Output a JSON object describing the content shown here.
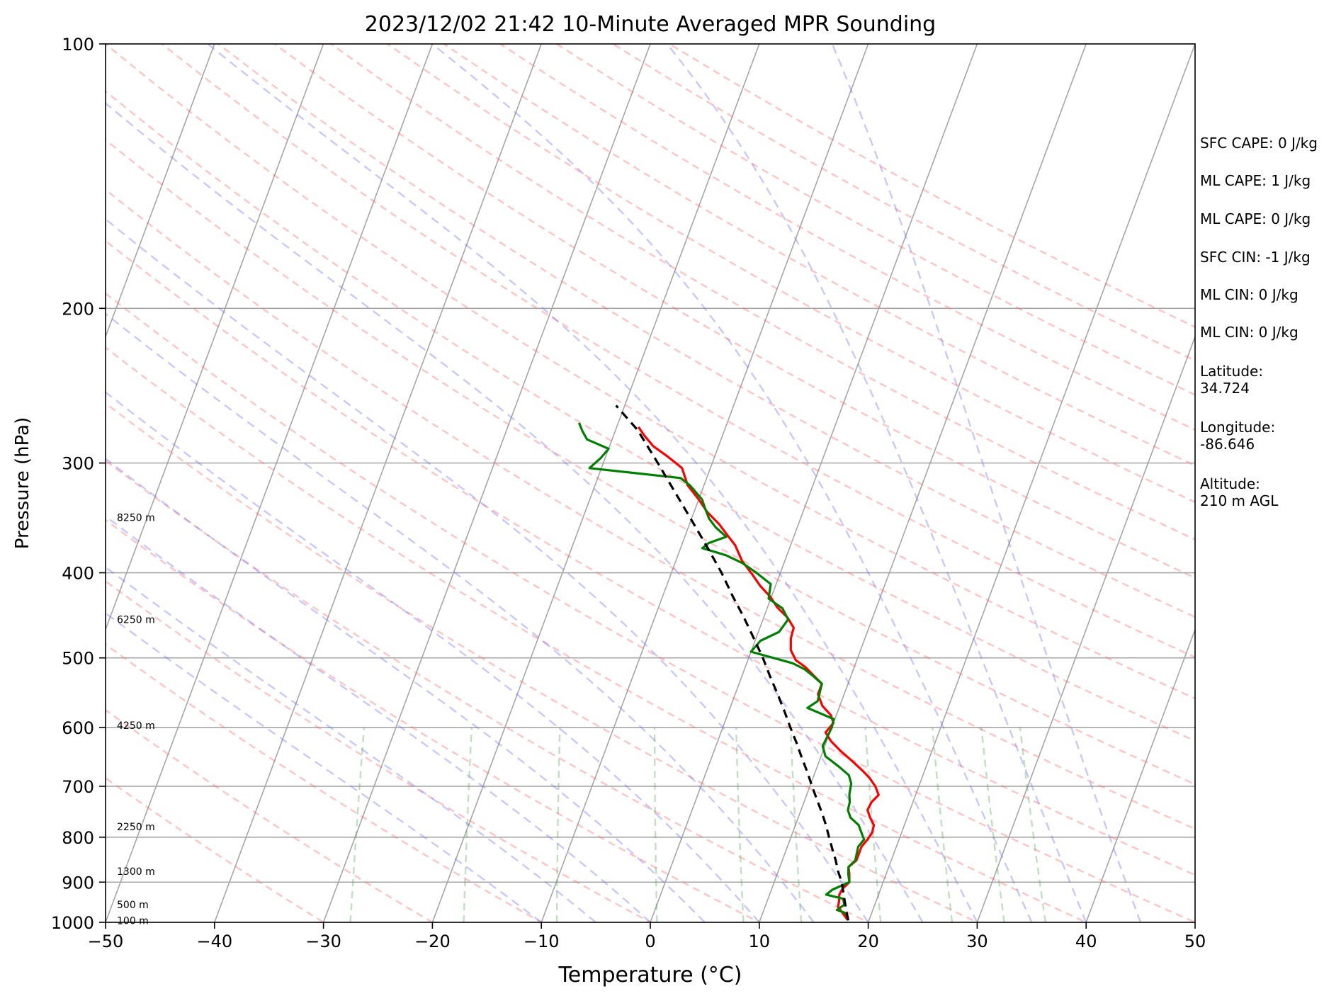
{
  "chart_data": {
    "type": "line",
    "title": "2023/12/02 21:42 10-Minute Averaged MPR Sounding",
    "xlabel": "Temperature (°C)",
    "ylabel": "Pressure (hPa)",
    "xlim": [
      -50,
      50
    ],
    "ylim": [
      1000,
      100
    ],
    "y_scale": "log",
    "grid": true,
    "x_ticks": [
      -50,
      -40,
      -30,
      -20,
      -10,
      0,
      10,
      20,
      30,
      40,
      50
    ],
    "x_tick_labels": [
      "−50",
      "−40",
      "−30",
      "−20",
      "−10",
      "0",
      "10",
      "20",
      "30",
      "40",
      "50"
    ],
    "y_ticks": [
      1000,
      900,
      800,
      700,
      600,
      500,
      400,
      300,
      200,
      100
    ],
    "y_tick_labels": [
      "1000",
      "900",
      "800",
      "700",
      "600",
      "500",
      "400",
      "300",
      "200",
      "100"
    ],
    "height_labels": [
      {
        "pressure": 995,
        "text": "100 m"
      },
      {
        "pressure": 955,
        "text": "500 m"
      },
      {
        "pressure": 875,
        "text": "1300 m"
      },
      {
        "pressure": 778,
        "text": "2250 m"
      },
      {
        "pressure": 597,
        "text": "4250 m"
      },
      {
        "pressure": 452,
        "text": "6250 m"
      },
      {
        "pressure": 346,
        "text": "8250 m"
      }
    ],
    "series": [
      {
        "color": "#ff0000",
        "points": [
          [
            18.0,
            993
          ],
          [
            17.3,
            975
          ],
          [
            16.7,
            960
          ],
          [
            16.6,
            945
          ],
          [
            16.4,
            930
          ],
          [
            16.5,
            915
          ],
          [
            16.9,
            900
          ],
          [
            16.6,
            880
          ],
          [
            16.3,
            865
          ],
          [
            16.8,
            850
          ],
          [
            16.8,
            835
          ],
          [
            16.8,
            820
          ],
          [
            17.1,
            805
          ],
          [
            17.3,
            790
          ],
          [
            17.2,
            775
          ],
          [
            16.6,
            760
          ],
          [
            16.1,
            745
          ],
          [
            16.2,
            730
          ],
          [
            16.6,
            716
          ],
          [
            16.0,
            700
          ],
          [
            15.2,
            685
          ],
          [
            14.3,
            672
          ],
          [
            13.0,
            655
          ],
          [
            11.6,
            638
          ],
          [
            10.4,
            622
          ],
          [
            9.6,
            608
          ],
          [
            10.0,
            593
          ],
          [
            9.5,
            581
          ],
          [
            8.4,
            567
          ],
          [
            7.6,
            550
          ],
          [
            7.6,
            535
          ],
          [
            6.6,
            524
          ],
          [
            5.5,
            512
          ],
          [
            4.4,
            503
          ],
          [
            3.6,
            490
          ],
          [
            3.2,
            475
          ],
          [
            3.1,
            462
          ],
          [
            2.2,
            450
          ],
          [
            0.9,
            438
          ],
          [
            -0.1,
            426
          ],
          [
            -1.4,
            414
          ],
          [
            -2.5,
            402
          ],
          [
            -3.9,
            388
          ],
          [
            -5.1,
            372
          ],
          [
            -6.2,
            362
          ],
          [
            -7.3,
            352
          ],
          [
            -8.8,
            341
          ],
          [
            -10.0,
            330
          ],
          [
            -11.5,
            318
          ],
          [
            -12.6,
            304
          ],
          [
            -14.3,
            295
          ],
          [
            -16.0,
            287
          ],
          [
            -17.2,
            279
          ],
          [
            -18.0,
            273
          ]
        ]
      },
      {
        "color": "#008000",
        "points": [
          [
            18.0,
            988
          ],
          [
            17.5,
            975
          ],
          [
            16.7,
            968
          ],
          [
            17.2,
            955
          ],
          [
            16.9,
            940
          ],
          [
            15.2,
            930
          ],
          [
            15.6,
            918
          ],
          [
            16.9,
            900
          ],
          [
            16.5,
            880
          ],
          [
            16.3,
            865
          ],
          [
            16.7,
            850
          ],
          [
            16.6,
            835
          ],
          [
            16.5,
            820
          ],
          [
            16.8,
            805
          ],
          [
            16.3,
            790
          ],
          [
            15.8,
            775
          ],
          [
            14.8,
            760
          ],
          [
            14.3,
            745
          ],
          [
            14.2,
            730
          ],
          [
            13.9,
            715
          ],
          [
            13.7,
            695
          ],
          [
            13.2,
            680
          ],
          [
            12.0,
            665
          ],
          [
            10.4,
            647
          ],
          [
            9.8,
            630
          ],
          [
            10.0,
            600
          ],
          [
            9.9,
            587
          ],
          [
            7.1,
            570
          ],
          [
            7.8,
            560
          ],
          [
            7.6,
            535
          ],
          [
            6.5,
            524
          ],
          [
            5.5,
            515
          ],
          [
            4.2,
            507
          ],
          [
            0.0,
            492
          ],
          [
            0.5,
            478
          ],
          [
            1.9,
            467
          ],
          [
            2.3,
            452
          ],
          [
            1.4,
            439
          ],
          [
            -0.2,
            428
          ],
          [
            -0.5,
            412
          ],
          [
            -2.2,
            400
          ],
          [
            -3.8,
            390
          ],
          [
            -5.6,
            382
          ],
          [
            -8.0,
            375
          ],
          [
            -7.6,
            370
          ],
          [
            -6.2,
            364
          ],
          [
            -7.5,
            355
          ],
          [
            -8.4,
            347
          ],
          [
            -9.1,
            338
          ],
          [
            -9.7,
            330
          ],
          [
            -11.3,
            318
          ],
          [
            -12.4,
            312
          ],
          [
            -21.1,
            304
          ],
          [
            -20.4,
            296
          ],
          [
            -20.0,
            289
          ],
          [
            -22.3,
            282
          ],
          [
            -23.0,
            276
          ],
          [
            -23.6,
            270
          ]
        ]
      },
      {
        "color": "#000000",
        "dashed": true,
        "points": [
          [
            18.1,
            995
          ],
          [
            17.7,
            975
          ],
          [
            17.2,
            950
          ],
          [
            16.7,
            925
          ],
          [
            16.2,
            900
          ],
          [
            15.5,
            875
          ],
          [
            14.9,
            850
          ],
          [
            14.2,
            825
          ],
          [
            13.5,
            800
          ],
          [
            12.8,
            775
          ],
          [
            12.0,
            750
          ],
          [
            11.1,
            725
          ],
          [
            10.2,
            700
          ],
          [
            9.3,
            675
          ],
          [
            8.3,
            650
          ],
          [
            7.3,
            625
          ],
          [
            6.2,
            600
          ],
          [
            5.1,
            575
          ],
          [
            3.9,
            550
          ],
          [
            2.6,
            525
          ],
          [
            1.3,
            500
          ],
          [
            -0.2,
            475
          ],
          [
            -1.8,
            450
          ],
          [
            -3.6,
            425
          ],
          [
            -5.4,
            400
          ],
          [
            -7.5,
            375
          ],
          [
            -9.8,
            350
          ],
          [
            -12.3,
            325
          ],
          [
            -15.0,
            300
          ],
          [
            -18.0,
            275
          ],
          [
            -20.8,
            258
          ]
        ]
      }
    ],
    "annotations": [
      "SFC CAPE: 0 J/kg",
      "ML CAPE: 1 J/kg",
      "ML CAPE: 0 J/kg",
      "SFC CIN: -1 J/kg",
      "ML CIN: 0 J/kg",
      "ML CIN: 0 J/kg",
      "Latitude:\n34.724",
      "Longitude:\n-86.646",
      "Altitude:\n210 m AGL"
    ]
  }
}
